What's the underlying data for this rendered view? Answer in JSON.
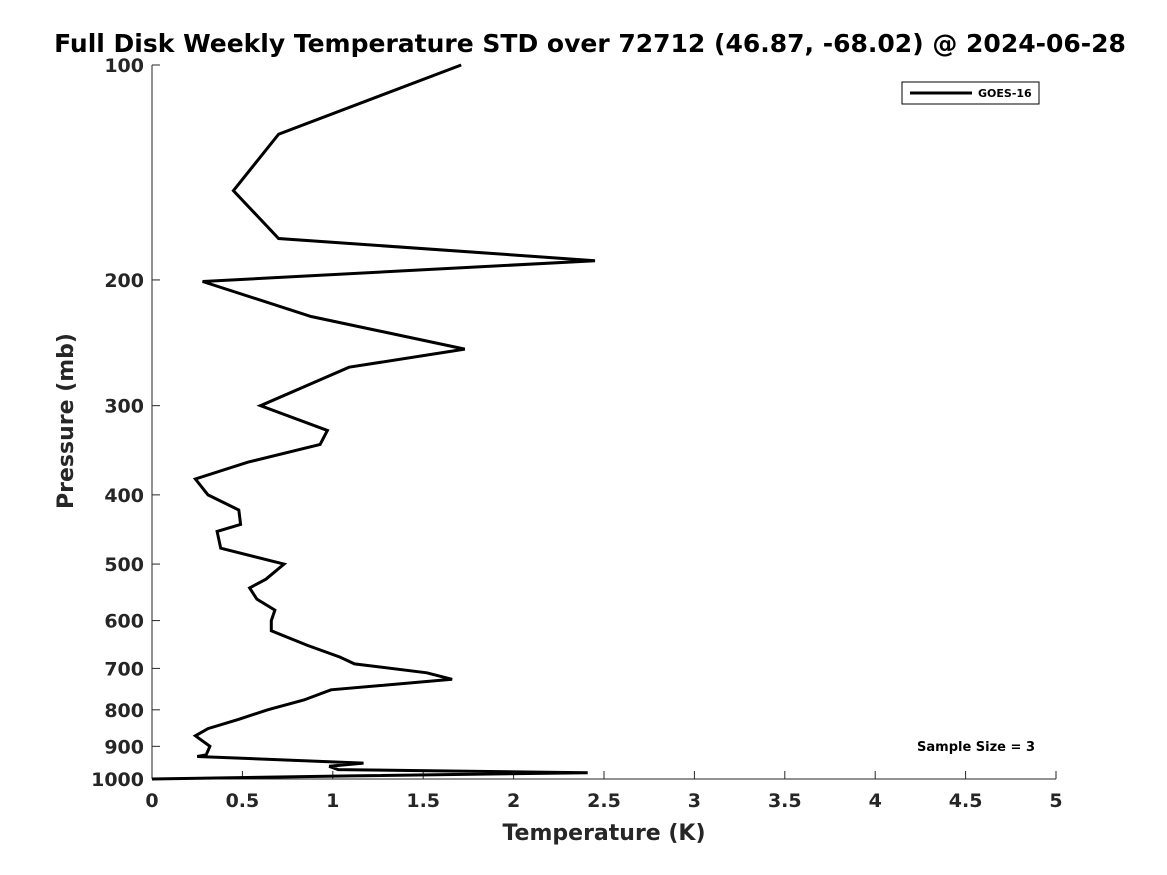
{
  "chart_data": {
    "type": "line",
    "title": "Full Disk Weekly Temperature STD over 72712 (46.87, -68.02) @ 2024-06-28",
    "xlabel": "Temperature (K)",
    "ylabel": "Pressure (mb)",
    "xlim": [
      0,
      5
    ],
    "ylim": [
      100,
      1000
    ],
    "y_scale": "log",
    "y_reversed": true,
    "x_ticks": [
      "0",
      "0.5",
      "1",
      "1.5",
      "2",
      "2.5",
      "3",
      "3.5",
      "4",
      "4.5",
      "5"
    ],
    "y_ticks": [
      "100",
      "200",
      "300",
      "400",
      "500",
      "600",
      "700",
      "800",
      "900",
      "1000"
    ],
    "grid": false,
    "legend_position": "top-right",
    "annotation": "Sample Size = 3",
    "series": [
      {
        "name": "GOES-16",
        "color": "#000000",
        "points": [
          [
            1.71,
            100
          ],
          [
            0.7,
            125
          ],
          [
            0.45,
            150
          ],
          [
            0.7,
            175
          ],
          [
            2.45,
            188
          ],
          [
            0.28,
            201
          ],
          [
            0.88,
            225
          ],
          [
            1.73,
            250
          ],
          [
            1.09,
            265
          ],
          [
            0.6,
            300
          ],
          [
            0.97,
            325
          ],
          [
            0.93,
            340
          ],
          [
            0.53,
            360
          ],
          [
            0.24,
            380
          ],
          [
            0.31,
            400
          ],
          [
            0.48,
            420
          ],
          [
            0.49,
            440
          ],
          [
            0.36,
            450
          ],
          [
            0.38,
            475
          ],
          [
            0.73,
            500
          ],
          [
            0.63,
            525
          ],
          [
            0.54,
            540
          ],
          [
            0.58,
            560
          ],
          [
            0.68,
            580
          ],
          [
            0.66,
            600
          ],
          [
            0.66,
            620
          ],
          [
            0.86,
            650
          ],
          [
            1.04,
            675
          ],
          [
            1.12,
            690
          ],
          [
            1.52,
            710
          ],
          [
            1.66,
            725
          ],
          [
            0.99,
            750
          ],
          [
            0.84,
            775
          ],
          [
            0.64,
            800
          ],
          [
            0.48,
            825
          ],
          [
            0.31,
            850
          ],
          [
            0.24,
            870
          ],
          [
            0.32,
            900
          ],
          [
            0.3,
            925
          ],
          [
            0.25,
            930
          ],
          [
            1.17,
            950
          ],
          [
            0.98,
            960
          ],
          [
            1.03,
            970
          ],
          [
            2.41,
            980
          ],
          [
            1.1,
            990
          ],
          [
            0.0,
            1000
          ]
        ]
      }
    ]
  }
}
